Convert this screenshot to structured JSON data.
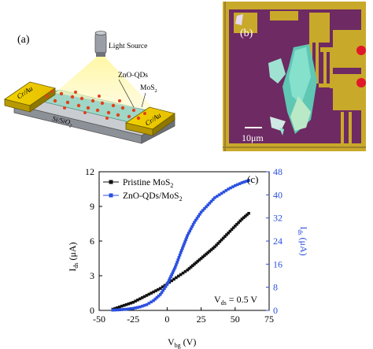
{
  "panel_a": {
    "label": "(a)",
    "light_source": "Light Source",
    "zno_qds": "ZnO-QDs",
    "mos2_base": "MoS",
    "mos2_sub": "2",
    "electrode_left": "Cr/Au",
    "electrode_right": "Cr/Au",
    "substrate_base": "Si/SiO",
    "substrate_sub": "2"
  },
  "panel_b": {
    "label": "(b)",
    "scale_bar": "10μm"
  },
  "panel_c": {
    "label": "(c)",
    "legend": [
      {
        "base": "Pristine MoS",
        "sub": "2",
        "color": "#111111"
      },
      {
        "base": "ZnO-QDs/MoS",
        "sub": "2",
        "color": "#2a4fe0"
      }
    ],
    "annotation_base": "V",
    "annotation_sub": "ds",
    "annotation_rest": " = 0.5 V",
    "xlabel_base": "V",
    "xlabel_sub": "bg",
    "xlabel_rest": " (V)",
    "ylabel_left_base": "I",
    "ylabel_left_sub": "ds",
    "ylabel_left_rest": " (μA)",
    "ylabel_right_base": "I",
    "ylabel_right_sub": "ds",
    "ylabel_right_rest": " (μA)"
  },
  "chart_data": {
    "type": "scatter",
    "x_ticks": [
      "-50",
      "-25",
      "0",
      "25",
      "50",
      "75"
    ],
    "y_left_ticks": [
      "0",
      "3",
      "6",
      "9",
      "12"
    ],
    "y_right_ticks": [
      "0",
      "8",
      "16",
      "24",
      "32",
      "40",
      "48"
    ],
    "xlim": [
      -50,
      75
    ],
    "ylim_left": [
      0,
      12
    ],
    "ylim_right": [
      0,
      48
    ],
    "series": [
      {
        "name": "Pristine MoS2",
        "axis": "left",
        "color": "#111111",
        "x": [
          -40,
          -35,
          -30,
          -25,
          -20,
          -15,
          -10,
          -5,
          0,
          5,
          10,
          15,
          20,
          25,
          30,
          35,
          40,
          45,
          50,
          55,
          60
        ],
        "y": [
          0.1,
          0.3,
          0.5,
          0.7,
          1.0,
          1.3,
          1.6,
          1.9,
          2.3,
          2.7,
          3.1,
          3.5,
          4.0,
          4.5,
          5.0,
          5.5,
          6.1,
          6.7,
          7.3,
          7.9,
          8.4
        ]
      },
      {
        "name": "ZnO-QDs/MoS2",
        "axis": "right",
        "color": "#2a4fe0",
        "x": [
          -40,
          -35,
          -30,
          -25,
          -20,
          -15,
          -10,
          -5,
          0,
          2,
          4,
          6,
          8,
          10,
          15,
          20,
          25,
          30,
          35,
          40,
          45,
          50,
          55,
          60
        ],
        "y": [
          0.1,
          0.2,
          0.4,
          0.7,
          1.2,
          2.0,
          3.4,
          5.5,
          9,
          11,
          13,
          15,
          17.5,
          20,
          26,
          30.5,
          34,
          36.5,
          39,
          40.5,
          42,
          43.2,
          44.2,
          45
        ]
      }
    ]
  }
}
